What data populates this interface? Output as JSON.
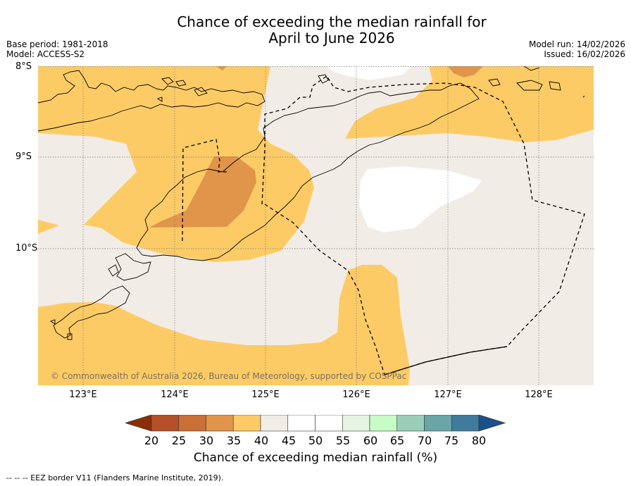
{
  "title": {
    "line1": "Chance of exceeding the median rainfall for",
    "line2": "April to June 2026"
  },
  "meta": {
    "base_period": "Base period: 1981-2018",
    "model": "Model: ACCESS-S2",
    "model_run": "Model run: 14/02/2026",
    "issued": "Issued: 16/02/2026"
  },
  "axes": {
    "lat_labels": [
      "8°S",
      "9°S",
      "10°S"
    ],
    "lon_labels": [
      "123°E",
      "124°E",
      "125°E",
      "126°E",
      "127°E",
      "128°E"
    ]
  },
  "copyright": "© Commonwealth of Australia 2026, Bureau of Meteorology, supported by COSPPac",
  "colorbar": {
    "ticks": [
      "20",
      "25",
      "30",
      "35",
      "40",
      "45",
      "50",
      "55",
      "60",
      "65",
      "70",
      "75",
      "80"
    ],
    "colors": [
      "#8c2d04",
      "#b5502a",
      "#cc6f35",
      "#e0954a",
      "#fdcb66",
      "#f1ece6",
      "#ffffff",
      "#ffffff",
      "#e5f5e0",
      "#c7fcc4",
      "#99cfb8",
      "#6aa5a8",
      "#3f7b9c",
      "#1a4f8a"
    ],
    "label": "Chance of exceeding median rainfall (%)"
  },
  "legend": {
    "eez_line": "--  --  -- EEZ border V11 (Flanders Marine Institute, 2019)."
  },
  "map_colors": {
    "below_35_40": "#fdcb66",
    "below_30_35": "#e0954a",
    "near_40_45": "#f1ece6",
    "near_45_55": "#ffffff"
  }
}
